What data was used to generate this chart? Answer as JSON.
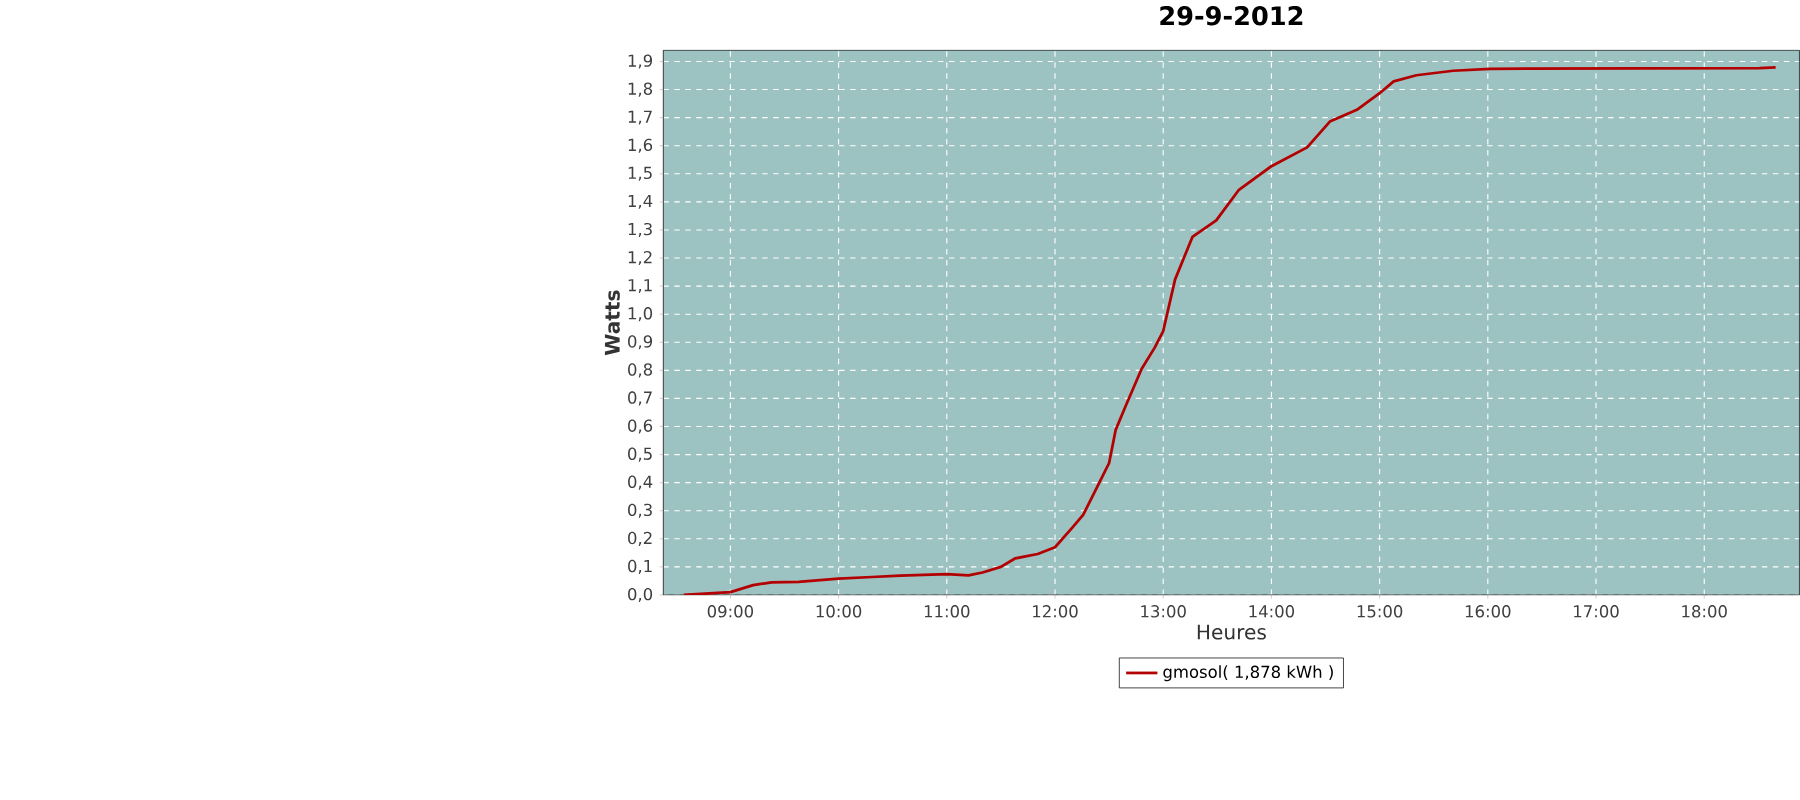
{
  "chart_data": {
    "type": "line",
    "title": "29-9-2012",
    "xlabel": "Heures",
    "ylabel": "Watts",
    "x": [
      8.57,
      9.0,
      9.21,
      9.38,
      9.63,
      10.0,
      10.31,
      10.57,
      11.0,
      11.2,
      11.33,
      11.5,
      11.63,
      11.84,
      12.0,
      12.16,
      12.26,
      12.39,
      12.5,
      12.56,
      12.65,
      12.8,
      12.92,
      13.0,
      13.11,
      13.27,
      13.49,
      13.7,
      14.0,
      14.33,
      14.54,
      14.79,
      15.0,
      15.13,
      15.34,
      15.68,
      16.02,
      18.51,
      18.66
    ],
    "series": [
      {
        "name": "gmosol( 1,878 kWh )",
        "color": "#b30000",
        "values": [
          0.0,
          0.01,
          0.035,
          0.045,
          0.047,
          0.058,
          0.064,
          0.069,
          0.074,
          0.07,
          0.08,
          0.1,
          0.13,
          0.146,
          0.17,
          0.24,
          0.285,
          0.385,
          0.47,
          0.587,
          0.67,
          0.805,
          0.88,
          0.94,
          1.124,
          1.275,
          1.334,
          1.443,
          1.527,
          1.594,
          1.686,
          1.728,
          1.787,
          1.829,
          1.851,
          1.867,
          1.874,
          1.876,
          1.879
        ]
      }
    ],
    "xlim": [
      8.38,
      18.88
    ],
    "xticks": [
      {
        "value": 9,
        "label": "09:00"
      },
      {
        "value": 10,
        "label": "10:00"
      },
      {
        "value": 11,
        "label": "11:00"
      },
      {
        "value": 12,
        "label": "12:00"
      },
      {
        "value": 13,
        "label": "13:00"
      },
      {
        "value": 14,
        "label": "14:00"
      },
      {
        "value": 15,
        "label": "15:00"
      },
      {
        "value": 16,
        "label": "16:00"
      },
      {
        "value": 17,
        "label": "17:00"
      },
      {
        "value": 18,
        "label": "18:00"
      }
    ],
    "ylim": [
      0,
      1.94
    ],
    "yticks": [
      {
        "value": 0,
        "label": "0,0"
      },
      {
        "value": 0.1,
        "label": "0,1"
      },
      {
        "value": 0.2,
        "label": "0,2"
      },
      {
        "value": 0.3,
        "label": "0,3"
      },
      {
        "value": 0.4,
        "label": "0,4"
      },
      {
        "value": 0.5,
        "label": "0,5"
      },
      {
        "value": 0.6,
        "label": "0,6"
      },
      {
        "value": 0.7,
        "label": "0,7"
      },
      {
        "value": 0.8,
        "label": "0,8"
      },
      {
        "value": 0.9,
        "label": "0,9"
      },
      {
        "value": 1.0,
        "label": "1,0"
      },
      {
        "value": 1.1,
        "label": "1,1"
      },
      {
        "value": 1.2,
        "label": "1,2"
      },
      {
        "value": 1.3,
        "label": "1,3"
      },
      {
        "value": 1.4,
        "label": "1,4"
      },
      {
        "value": 1.5,
        "label": "1,5"
      },
      {
        "value": 1.6,
        "label": "1,6"
      },
      {
        "value": 1.7,
        "label": "1,7"
      },
      {
        "value": 1.8,
        "label": "1,8"
      },
      {
        "value": 1.9,
        "label": "1,9"
      }
    ],
    "grid": true,
    "legend": "bottom",
    "line_style": "solid"
  }
}
